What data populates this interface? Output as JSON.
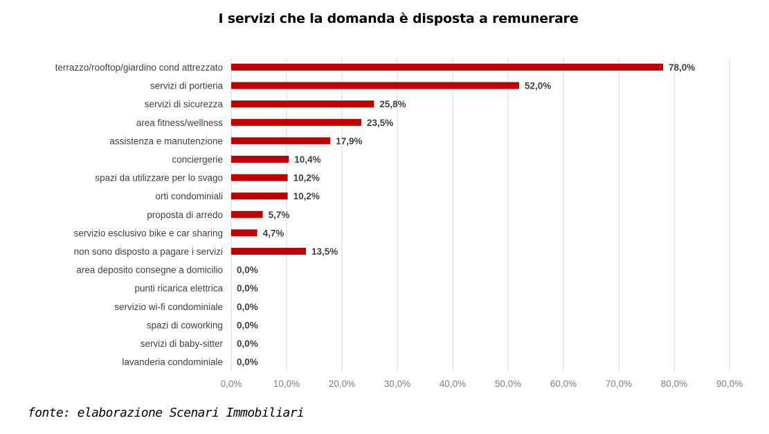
{
  "chart_data": {
    "type": "bar",
    "orientation": "horizontal",
    "title": "I servizi che la domanda è disposta a remunerare",
    "categories": [
      "terrazzo/rooftop/giardino cond attrezzato",
      "servizi di portieria",
      "servizi di sicurezza",
      "area fitness/wellness",
      "assistenza e manutenzione",
      "conciergerie",
      "spazi da utilizzare per lo svago",
      "orti condominiali",
      "proposta di arredo",
      "servizio esclusivo bike e car sharing",
      "non sono disposto a pagare i servizi",
      "area deposito consegne a domicilio",
      "punti ricarica elettrica",
      "servizio wi-fi condominiale",
      "spazi di coworking",
      "servizi di baby-sitter",
      "lavanderia condominiale"
    ],
    "values": [
      78.0,
      52.0,
      25.8,
      23.5,
      17.9,
      10.4,
      10.2,
      10.2,
      5.7,
      4.7,
      13.5,
      0.0,
      0.0,
      0.0,
      0.0,
      0.0,
      0.0
    ],
    "value_labels": [
      "78,0%",
      "52,0%",
      "25,8%",
      "23,5%",
      "17,9%",
      "10,4%",
      "10,2%",
      "10,2%",
      "5,7%",
      "4,7%",
      "13,5%",
      "0,0%",
      "0,0%",
      "0,0%",
      "0,0%",
      "0,0%",
      "0,0%"
    ],
    "xlim": [
      0,
      90
    ],
    "x_ticks": [
      0,
      10,
      20,
      30,
      40,
      50,
      60,
      70,
      80,
      90
    ],
    "x_tick_labels": [
      "0,0%",
      "10,0%",
      "20,0%",
      "30,0%",
      "40,0%",
      "50,0%",
      "60,0%",
      "70,0%",
      "80,0%",
      "90,0%"
    ],
    "xlabel": "",
    "ylabel": "",
    "grid": "vertical",
    "legend": "none",
    "bar_color": "#c00000",
    "grid_color": "#d9d9d9"
  },
  "source_note": "fonte: elaborazione Scenari Immobiliari"
}
